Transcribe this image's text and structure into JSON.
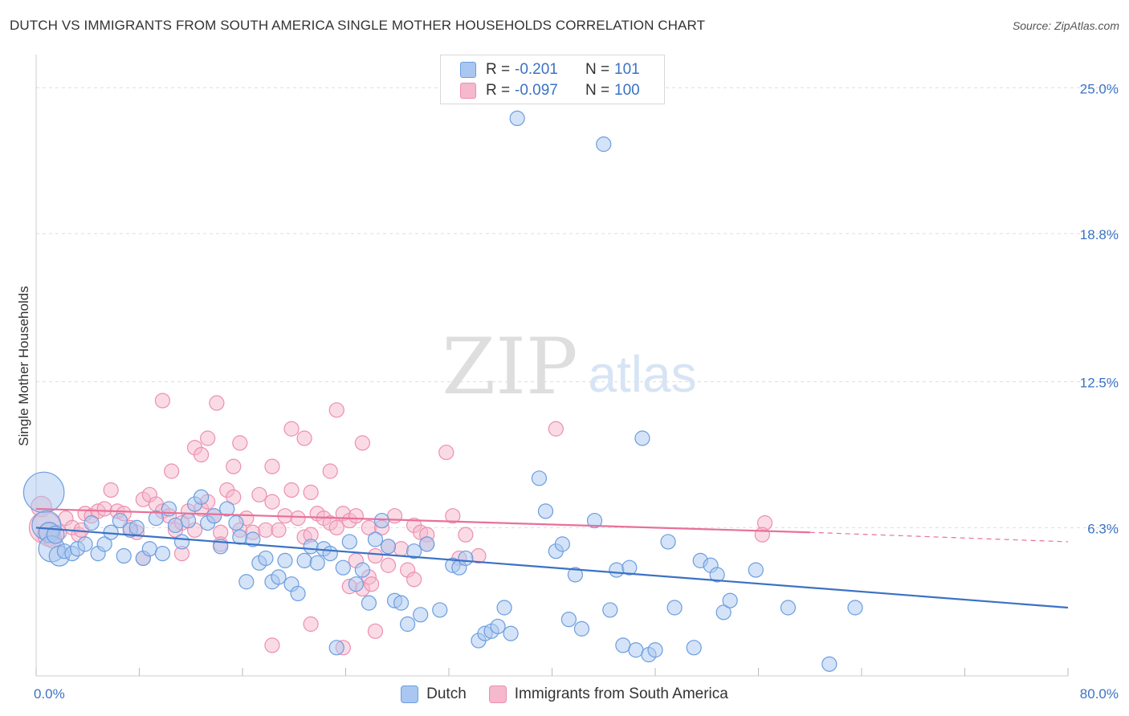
{
  "header": {
    "title": "DUTCH VS IMMIGRANTS FROM SOUTH AMERICA SINGLE MOTHER HOUSEHOLDS CORRELATION CHART",
    "source": "Source: ZipAtlas.com"
  },
  "watermark": {
    "zip": "ZIP",
    "atlas": "atlas"
  },
  "legend": {
    "rows": [
      {
        "r_label": "R =",
        "r_value": "-0.201",
        "n_label": "N =",
        "n_value": "101"
      },
      {
        "r_label": "R =",
        "r_value": "-0.097",
        "n_label": "N =",
        "n_value": "100"
      }
    ]
  },
  "bottom_legend": {
    "series1": "Dutch",
    "series2": "Immigrants from South America"
  },
  "colors": {
    "blue": "#3b72c4",
    "blue_fill": "#a9c7f0",
    "blue_stroke": "#6b9de0",
    "pink": "#e8709a",
    "pink_fill": "#f5b8cc",
    "pink_stroke": "#ec8fb0",
    "grid": "#dddddd",
    "tick_label": "#3b72c4"
  },
  "chart_data": {
    "type": "scatter",
    "title": "DUTCH VS IMMIGRANTS FROM SOUTH AMERICA SINGLE MOTHER HOUSEHOLDS CORRELATION CHART",
    "xlabel": "",
    "ylabel": "Single Mother Households",
    "xlim": [
      0,
      80
    ],
    "ylim": [
      0,
      26
    ],
    "x_tick_labels": [
      "0.0%",
      "80.0%"
    ],
    "y_ticks": [
      6.3,
      12.5,
      18.8,
      25.0
    ],
    "y_tick_labels": [
      "6.3%",
      "12.5%",
      "18.8%",
      "25.0%"
    ],
    "series": [
      {
        "name": "Dutch",
        "R": -0.201,
        "N": 101,
        "trend": {
          "x": [
            0,
            80
          ],
          "y": [
            6.3,
            2.9
          ]
        },
        "points": [
          [
            0.6,
            7.8,
            2.8
          ],
          [
            0.8,
            6.4,
            2.0
          ],
          [
            1.0,
            6.1,
            1.4
          ],
          [
            1.2,
            5.4,
            1.8
          ],
          [
            1.5,
            6.0,
            1.2
          ],
          [
            1.8,
            5.1,
            1.4
          ],
          [
            2.2,
            5.3,
            1.0
          ],
          [
            2.8,
            5.2,
            1.0
          ],
          [
            3.2,
            5.4,
            1.0
          ],
          [
            3.8,
            5.6,
            1.0
          ],
          [
            4.3,
            6.5,
            1.0
          ],
          [
            4.8,
            5.2,
            1.0
          ],
          [
            5.3,
            5.6,
            1.0
          ],
          [
            5.8,
            6.1,
            1.0
          ],
          [
            6.5,
            6.6,
            1.0
          ],
          [
            6.8,
            5.1,
            1.0
          ],
          [
            7.3,
            6.2,
            1.0
          ],
          [
            7.8,
            6.3,
            1.0
          ],
          [
            8.3,
            5.0,
            1.0
          ],
          [
            8.8,
            5.4,
            1.0
          ],
          [
            9.3,
            6.7,
            1.0
          ],
          [
            9.8,
            5.2,
            1.0
          ],
          [
            10.3,
            7.1,
            1.0
          ],
          [
            10.8,
            6.4,
            1.0
          ],
          [
            11.3,
            5.7,
            1.0
          ],
          [
            11.8,
            6.6,
            1.0
          ],
          [
            12.3,
            7.3,
            1.0
          ],
          [
            12.8,
            7.6,
            1.0
          ],
          [
            13.3,
            6.5,
            1.0
          ],
          [
            13.8,
            6.8,
            1.0
          ],
          [
            14.3,
            5.5,
            1.0
          ],
          [
            14.8,
            7.1,
            1.0
          ],
          [
            15.5,
            6.5,
            1.0
          ],
          [
            15.8,
            5.9,
            1.0
          ],
          [
            16.3,
            4.0,
            1.0
          ],
          [
            16.8,
            5.8,
            1.0
          ],
          [
            17.3,
            4.8,
            1.0
          ],
          [
            17.8,
            5.0,
            1.0
          ],
          [
            18.3,
            4.0,
            1.0
          ],
          [
            18.8,
            4.2,
            1.0
          ],
          [
            19.3,
            4.9,
            1.0
          ],
          [
            19.8,
            3.9,
            1.0
          ],
          [
            20.3,
            3.5,
            1.0
          ],
          [
            20.8,
            4.9,
            1.0
          ],
          [
            21.3,
            5.5,
            1.0
          ],
          [
            21.8,
            4.8,
            1.0
          ],
          [
            22.3,
            5.4,
            1.0
          ],
          [
            22.8,
            5.2,
            1.0
          ],
          [
            23.3,
            1.2,
            1.0
          ],
          [
            23.8,
            4.6,
            1.0
          ],
          [
            24.3,
            5.7,
            1.0
          ],
          [
            24.8,
            3.9,
            1.0
          ],
          [
            25.3,
            4.5,
            1.0
          ],
          [
            25.8,
            3.1,
            1.0
          ],
          [
            26.3,
            5.8,
            1.0
          ],
          [
            26.8,
            6.6,
            1.0
          ],
          [
            27.3,
            5.5,
            1.0
          ],
          [
            27.8,
            3.2,
            1.0
          ],
          [
            28.3,
            3.1,
            1.0
          ],
          [
            28.8,
            2.2,
            1.0
          ],
          [
            29.3,
            5.3,
            1.0
          ],
          [
            29.8,
            2.6,
            1.0
          ],
          [
            30.3,
            5.6,
            1.0
          ],
          [
            31.3,
            2.8,
            1.0
          ],
          [
            32.3,
            4.7,
            1.0
          ],
          [
            32.8,
            4.6,
            1.0
          ],
          [
            33.3,
            5.0,
            1.0
          ],
          [
            34.3,
            1.5,
            1.0
          ],
          [
            34.8,
            1.8,
            1.0
          ],
          [
            35.3,
            1.9,
            1.0
          ],
          [
            35.8,
            2.1,
            1.0
          ],
          [
            36.3,
            2.9,
            1.0
          ],
          [
            36.8,
            1.8,
            1.0
          ],
          [
            37.3,
            23.7,
            1.0
          ],
          [
            39.0,
            8.4,
            1.0
          ],
          [
            39.5,
            7.0,
            1.0
          ],
          [
            40.3,
            5.3,
            1.0
          ],
          [
            40.8,
            5.6,
            1.0
          ],
          [
            41.3,
            2.4,
            1.0
          ],
          [
            41.8,
            4.3,
            1.0
          ],
          [
            42.3,
            2.0,
            1.0
          ],
          [
            43.3,
            6.6,
            1.0
          ],
          [
            44.0,
            22.6,
            1.0
          ],
          [
            44.5,
            2.8,
            1.0
          ],
          [
            45.0,
            4.5,
            1.0
          ],
          [
            45.5,
            1.3,
            1.0
          ],
          [
            46.0,
            4.6,
            1.0
          ],
          [
            46.5,
            1.1,
            1.0
          ],
          [
            47.0,
            10.1,
            1.0
          ],
          [
            47.5,
            0.9,
            1.0
          ],
          [
            48.0,
            1.1,
            1.0
          ],
          [
            49.0,
            5.7,
            1.0
          ],
          [
            49.5,
            2.9,
            1.0
          ],
          [
            51.0,
            1.2,
            1.0
          ],
          [
            51.5,
            4.9,
            1.0
          ],
          [
            52.3,
            4.7,
            1.0
          ],
          [
            52.8,
            4.3,
            1.0
          ],
          [
            53.3,
            2.7,
            1.0
          ],
          [
            53.8,
            3.2,
            1.0
          ],
          [
            55.8,
            4.5,
            1.0
          ],
          [
            58.3,
            2.9,
            1.0
          ],
          [
            61.5,
            0.5,
            1.0
          ],
          [
            63.5,
            2.9,
            1.0
          ]
        ]
      },
      {
        "name": "Immigrants from South America",
        "R": -0.097,
        "N": 100,
        "trend": {
          "x": [
            0,
            60
          ],
          "y": [
            7.1,
            6.1
          ]
        },
        "trend_dashed": {
          "x": [
            60,
            80
          ],
          "y": [
            6.1,
            5.7
          ]
        },
        "points": [
          [
            0.4,
            7.2,
            1.4
          ],
          [
            0.7,
            6.3,
            2.2
          ],
          [
            1.0,
            6.0,
            1.6
          ],
          [
            1.3,
            5.8,
            1.2
          ],
          [
            1.8,
            6.1,
            1.0
          ],
          [
            2.3,
            6.7,
            1.0
          ],
          [
            2.8,
            6.3,
            1.0
          ],
          [
            3.3,
            6.0,
            1.0
          ],
          [
            3.8,
            6.9,
            1.0
          ],
          [
            4.3,
            6.8,
            1.0
          ],
          [
            4.8,
            7.0,
            1.0
          ],
          [
            5.3,
            7.1,
            1.0
          ],
          [
            5.8,
            7.9,
            1.0
          ],
          [
            6.3,
            7.0,
            1.0
          ],
          [
            6.8,
            6.9,
            1.0
          ],
          [
            7.3,
            6.3,
            1.0
          ],
          [
            7.8,
            6.1,
            1.0
          ],
          [
            8.3,
            7.5,
            1.0
          ],
          [
            8.8,
            7.7,
            1.0
          ],
          [
            9.3,
            7.3,
            1.0
          ],
          [
            9.8,
            7.0,
            1.0
          ],
          [
            10.3,
            6.8,
            1.0
          ],
          [
            10.8,
            6.2,
            1.0
          ],
          [
            11.3,
            6.5,
            1.0
          ],
          [
            11.8,
            7.0,
            1.0
          ],
          [
            12.3,
            6.2,
            1.0
          ],
          [
            12.8,
            7.1,
            1.0
          ],
          [
            13.3,
            7.4,
            1.0
          ],
          [
            13.8,
            6.8,
            1.0
          ],
          [
            14.3,
            6.1,
            1.0
          ],
          [
            14.8,
            7.9,
            1.0
          ],
          [
            15.3,
            7.6,
            1.0
          ],
          [
            15.8,
            6.2,
            1.0
          ],
          [
            16.3,
            6.7,
            1.0
          ],
          [
            16.8,
            6.1,
            1.0
          ],
          [
            17.3,
            7.7,
            1.0
          ],
          [
            17.8,
            6.2,
            1.0
          ],
          [
            18.3,
            7.4,
            1.0
          ],
          [
            18.8,
            6.2,
            1.0
          ],
          [
            19.3,
            6.8,
            1.0
          ],
          [
            19.8,
            7.9,
            1.0
          ],
          [
            20.3,
            6.7,
            1.0
          ],
          [
            20.8,
            5.9,
            1.0
          ],
          [
            21.3,
            7.8,
            1.0
          ],
          [
            21.8,
            6.9,
            1.0
          ],
          [
            22.3,
            6.7,
            1.0
          ],
          [
            22.8,
            6.5,
            1.0
          ],
          [
            23.3,
            6.3,
            1.0
          ],
          [
            23.8,
            6.9,
            1.0
          ],
          [
            24.3,
            6.6,
            1.0
          ],
          [
            24.8,
            6.8,
            1.0
          ],
          [
            25.3,
            3.7,
            1.0
          ],
          [
            25.8,
            6.3,
            1.0
          ],
          [
            26.3,
            5.1,
            1.0
          ],
          [
            26.8,
            6.3,
            1.0
          ],
          [
            27.3,
            5.5,
            1.0
          ],
          [
            27.8,
            6.8,
            1.0
          ],
          [
            28.3,
            5.4,
            1.0
          ],
          [
            28.8,
            4.5,
            1.0
          ],
          [
            29.3,
            6.4,
            1.0
          ],
          [
            29.8,
            6.1,
            1.0
          ],
          [
            30.3,
            6.0,
            1.0
          ],
          [
            9.8,
            11.7,
            1.0
          ],
          [
            14.0,
            11.6,
            1.0
          ],
          [
            15.8,
            9.9,
            1.0
          ],
          [
            12.3,
            9.7,
            1.0
          ],
          [
            13.3,
            10.1,
            1.0
          ],
          [
            10.5,
            8.7,
            1.0
          ],
          [
            12.8,
            9.4,
            1.0
          ],
          [
            15.3,
            8.9,
            1.0
          ],
          [
            18.3,
            8.9,
            1.0
          ],
          [
            19.8,
            10.5,
            1.0
          ],
          [
            20.8,
            10.1,
            1.0
          ],
          [
            22.8,
            8.7,
            1.0
          ],
          [
            23.3,
            11.3,
            1.0
          ],
          [
            25.3,
            9.9,
            1.0
          ],
          [
            24.8,
            4.9,
            1.0
          ],
          [
            25.8,
            4.2,
            1.0
          ],
          [
            24.3,
            3.8,
            1.0
          ],
          [
            21.3,
            2.2,
            1.0
          ],
          [
            23.8,
            1.2,
            1.0
          ],
          [
            26.0,
            3.9,
            1.0
          ],
          [
            26.3,
            1.9,
            1.0
          ],
          [
            27.3,
            4.7,
            1.0
          ],
          [
            29.3,
            4.1,
            1.0
          ],
          [
            30.3,
            5.6,
            1.0
          ],
          [
            31.8,
            9.5,
            1.0
          ],
          [
            32.3,
            6.8,
            1.0
          ],
          [
            33.3,
            6.0,
            1.0
          ],
          [
            34.3,
            5.1,
            1.0
          ],
          [
            40.3,
            10.5,
            1.0
          ],
          [
            56.5,
            6.5,
            1.0
          ],
          [
            56.3,
            6.0,
            1.0
          ],
          [
            18.3,
            1.3,
            1.0
          ],
          [
            21.3,
            6.0,
            1.0
          ],
          [
            32.8,
            5.0,
            1.0
          ],
          [
            14.3,
            5.6,
            1.0
          ],
          [
            11.3,
            5.2,
            1.0
          ],
          [
            8.3,
            5.0,
            1.0
          ],
          [
            3.5,
            6.2,
            1.0
          ]
        ]
      }
    ]
  }
}
